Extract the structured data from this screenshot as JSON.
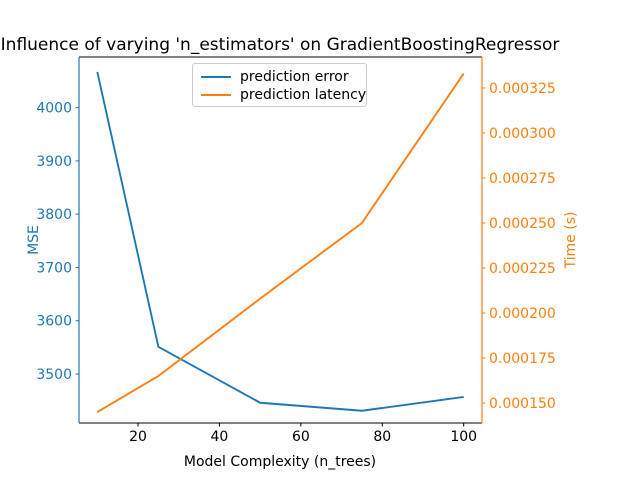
{
  "chart_data": {
    "type": "line",
    "title": "Influence of varying 'n_estimators' on GradientBoostingRegressor",
    "grid": false,
    "x": [
      10,
      25,
      50,
      75,
      100
    ],
    "series": [
      {
        "name": "prediction error",
        "axis": "left",
        "color": "#1f77b4",
        "values": [
          4067,
          3551,
          3446,
          3431,
          3457
        ]
      },
      {
        "name": "prediction latency",
        "axis": "right",
        "color": "#ff7f0e",
        "values": [
          0.000145,
          0.000165,
          0.000208,
          0.00025,
          0.000333
        ]
      }
    ],
    "x_axis": {
      "label": "Model Complexity (n_trees)",
      "color": "#000000",
      "ticks": [
        20,
        40,
        60,
        80,
        100
      ],
      "tick_labels": [
        "20",
        "40",
        "60",
        "80",
        "100"
      ],
      "lim": [
        5.5,
        104.5
      ]
    },
    "left_axis": {
      "label": "MSE",
      "color": "#1f77b4",
      "ticks": [
        3500,
        3600,
        3700,
        3800,
        3900,
        4000
      ],
      "tick_labels": [
        "3500",
        "3600",
        "3700",
        "3800",
        "3900",
        "4000"
      ],
      "lim": [
        3408,
        4095
      ]
    },
    "right_axis": {
      "label": "Time (s)",
      "color": "#ff7f0e",
      "ticks": [
        0.00015,
        0.000175,
        0.0002,
        0.000225,
        0.00025,
        0.000275,
        0.0003,
        0.000325
      ],
      "tick_labels": [
        "0.000150",
        "0.000175",
        "0.000200",
        "0.000225",
        "0.000250",
        "0.000275",
        "0.000300",
        "0.000325"
      ],
      "lim": [
        0.0001389,
        0.0003422
      ]
    },
    "legend": {
      "position": "upper center-left",
      "entries": [
        "prediction error",
        "prediction latency"
      ]
    }
  }
}
